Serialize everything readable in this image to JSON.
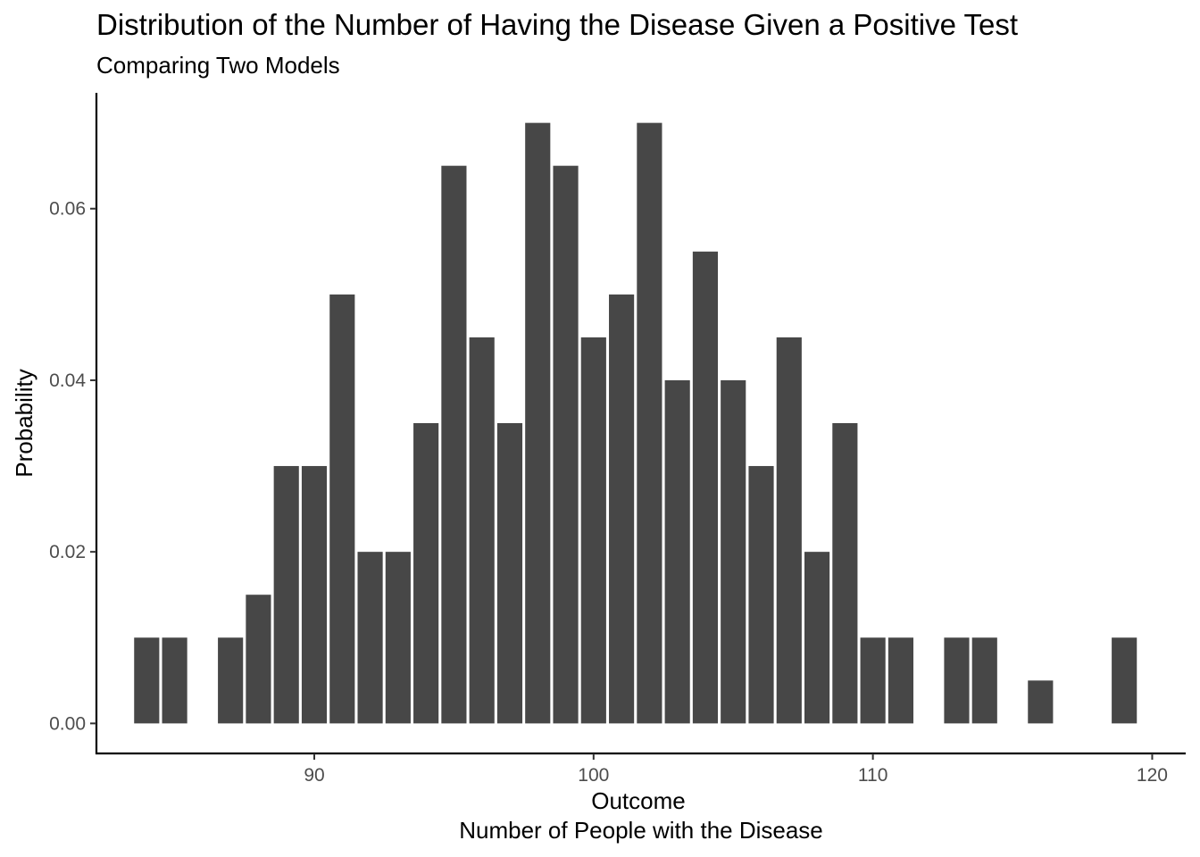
{
  "chart_data": {
    "type": "bar",
    "title": "Distribution of the Number of Having the Disease Given a Positive Test",
    "subtitle": "Comparing Two Models",
    "xlabel": "Outcome",
    "xlabel_secondary": "Number of People with the Disease",
    "ylabel": "Probability",
    "bar_color": "#474747",
    "xlim": [
      82.2,
      121.2
    ],
    "ylim": [
      -0.0035,
      0.0735
    ],
    "x_ticks": [
      90,
      100,
      110,
      120
    ],
    "x_tick_labels": [
      "90",
      "100",
      "110",
      "120"
    ],
    "y_ticks": [
      0,
      0.02,
      0.04,
      0.06
    ],
    "y_tick_labels": [
      "0.00",
      "0.02",
      "0.04",
      "0.06"
    ],
    "grid": false,
    "x": [
      84,
      85,
      87,
      88,
      89,
      90,
      91,
      92,
      93,
      94,
      95,
      96,
      97,
      98,
      99,
      100,
      101,
      102,
      103,
      104,
      105,
      106,
      107,
      108,
      109,
      110,
      111,
      113,
      114,
      116,
      119
    ],
    "values": [
      0.01,
      0.01,
      0.01,
      0.015,
      0.03,
      0.03,
      0.05,
      0.02,
      0.02,
      0.035,
      0.065,
      0.045,
      0.035,
      0.07,
      0.065,
      0.045,
      0.05,
      0.07,
      0.04,
      0.055,
      0.04,
      0.03,
      0.045,
      0.02,
      0.035,
      0.01,
      0.01,
      0.01,
      0.01,
      0.005,
      0.01
    ]
  }
}
